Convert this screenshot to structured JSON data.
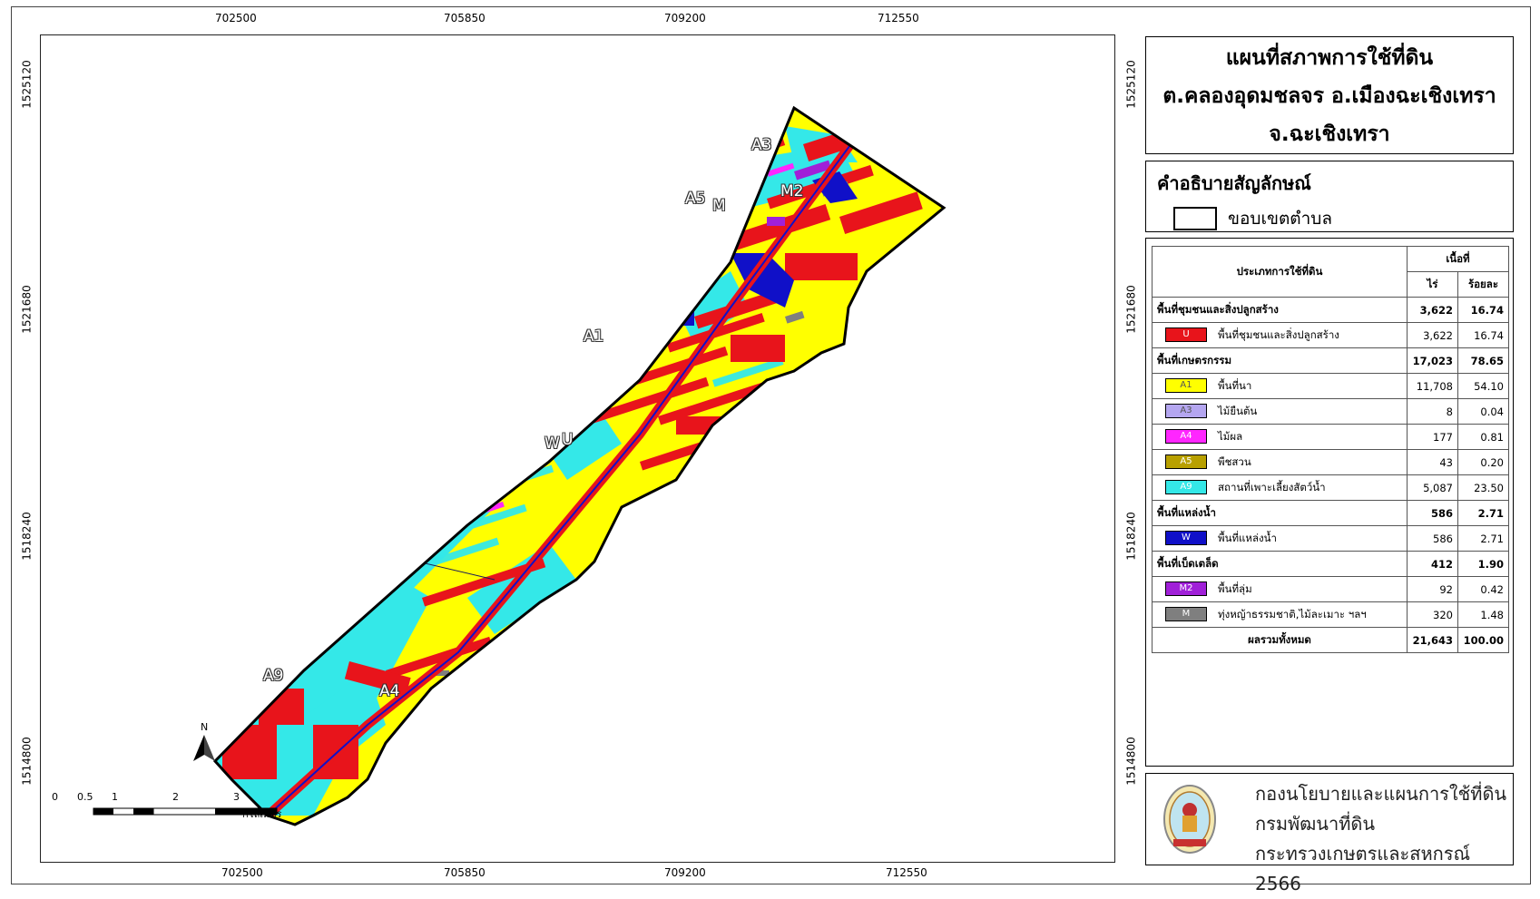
{
  "title": {
    "line1": "แผนที่สภาพการใช้ที่ดิน",
    "line2": "ต.คลองอุดมชลจร อ.เมืองฉะเชิงเทรา",
    "line3": "จ.ฉะเชิงเทรา"
  },
  "legend": {
    "heading": "คำอธิบายสัญลักษณ์",
    "boundary_label": "ขอบเขตตำบล"
  },
  "axes": {
    "x_ticks": [
      "702500",
      "705850",
      "709200",
      "712550"
    ],
    "y_ticks": [
      "1525120",
      "1521680",
      "1518240",
      "1514800"
    ]
  },
  "map_labels": {
    "a1": "A1",
    "a3": "A3",
    "a4": "A4",
    "a5": "A5",
    "a9": "A9",
    "m": "M",
    "m2": "M2",
    "w": "W",
    "u": "U"
  },
  "north": "N",
  "scale": {
    "numbers": [
      "0",
      "0.5",
      "1",
      "2",
      "3"
    ],
    "unit": "กิโลเมตร"
  },
  "table": {
    "header_type": "ประเภทการใช้ที่ดิน",
    "header_area": "เนื้อที่",
    "header_rai": "ไร่",
    "header_percent": "ร้อยละ",
    "rows": [
      {
        "kind": "group",
        "label": "พื้นที่ชุมชนและสิ่งปลูกสร้าง",
        "rai": "3,622",
        "pct": "16.74"
      },
      {
        "kind": "item",
        "code": "U",
        "color": "#e8141b",
        "label": "พื้นที่ชุมชนและสิ่งปลูกสร้าง",
        "rai": "3,622",
        "pct": "16.74"
      },
      {
        "kind": "group",
        "label": "พื้นที่เกษตรกรรม",
        "rai": "17,023",
        "pct": "78.65"
      },
      {
        "kind": "item",
        "code": "A1",
        "color": "#ffff00",
        "label": "พื้นที่นา",
        "rai": "11,708",
        "pct": "54.10"
      },
      {
        "kind": "item",
        "code": "A3",
        "color": "#b4a6f0",
        "label": "ไม้ยืนต้น",
        "rai": "8",
        "pct": "0.04"
      },
      {
        "kind": "item",
        "code": "A4",
        "color": "#ff26ff",
        "label": "ไม้ผล",
        "rai": "177",
        "pct": "0.81"
      },
      {
        "kind": "item",
        "code": "A5",
        "color": "#b8a000",
        "label": "พืชสวน",
        "rai": "43",
        "pct": "0.20"
      },
      {
        "kind": "item",
        "code": "A9",
        "color": "#34e8e8",
        "label": "สถานที่เพาะเลี้ยงสัตว์น้ำ",
        "rai": "5,087",
        "pct": "23.50"
      },
      {
        "kind": "group",
        "label": "พื้นที่แหล่งน้ำ",
        "rai": "586",
        "pct": "2.71"
      },
      {
        "kind": "item",
        "code": "W",
        "color": "#1010c8",
        "label": "พื้นที่แหล่งน้ำ",
        "rai": "586",
        "pct": "2.71"
      },
      {
        "kind": "group",
        "label": "พื้นที่เบ็ดเตล็ด",
        "rai": "412",
        "pct": "1.90"
      },
      {
        "kind": "item",
        "code": "M2",
        "color": "#a020d8",
        "label": "พื้นที่ลุ่ม",
        "rai": "92",
        "pct": "0.42"
      },
      {
        "kind": "item",
        "code": "M",
        "color": "#7f7f7f",
        "label": "ทุ่งหญ้าธรรมชาติ,ไม้ละเมาะ ฯลฯ",
        "rai": "320",
        "pct": "1.48"
      }
    ],
    "total_label": "ผลรวมทั้งหมด",
    "total_rai": "21,643",
    "total_pct": "100.00"
  },
  "credits": {
    "line1": "กองนโยบายและแผนการใช้ที่ดิน",
    "line2": "กรมพัฒนาที่ดิน",
    "line3": "กระทรวงเกษตรและสหกรณ์ 2566"
  },
  "colors": {
    "urban": "#e8141b",
    "paddy": "#ffff00",
    "aquaculture": "#34e8e8",
    "water": "#1010c8",
    "marsh": "#a020d8",
    "grass": "#7f7f7f",
    "orchard": "#ff26ff"
  }
}
